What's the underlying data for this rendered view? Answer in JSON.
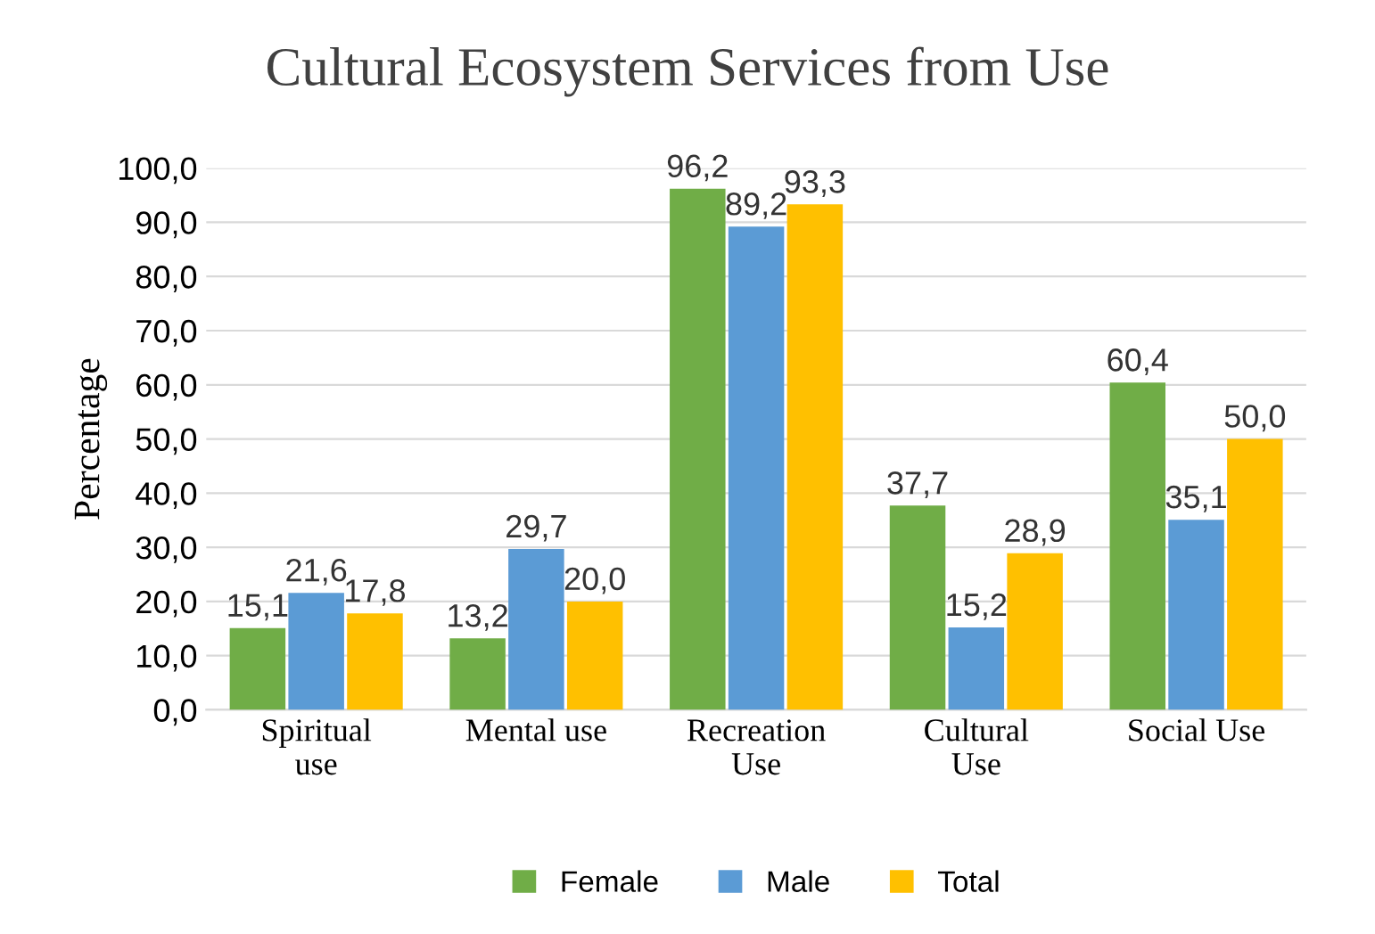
{
  "chart_data": {
    "type": "bar",
    "title": "Cultural Ecosystem Services from Use",
    "ylabel": "Percentage",
    "categories": [
      "Spiritual\nuse",
      "Mental use",
      "Recreation\nUse",
      "Cultural\nUse",
      "Social Use"
    ],
    "series": [
      {
        "name": "Female",
        "color": "#70ad47",
        "values": [
          15.1,
          13.2,
          96.2,
          37.7,
          60.4
        ],
        "value_labels": [
          "15,1",
          "13,2",
          "96,2",
          "37,7",
          "60,4"
        ]
      },
      {
        "name": "Male",
        "color": "#5b9bd5",
        "values": [
          21.6,
          29.7,
          89.2,
          15.2,
          35.1
        ],
        "value_labels": [
          "21,6",
          "29,7",
          "89,2",
          "15,2",
          "35,1"
        ]
      },
      {
        "name": "Total",
        "color": "#ffc000",
        "values": [
          17.8,
          20.0,
          93.3,
          28.9,
          50.0
        ],
        "value_labels": [
          "17,8",
          "20,0",
          "93,3",
          "28,9",
          "50,0"
        ]
      }
    ],
    "ylim": [
      0,
      100
    ],
    "yticks": [
      {
        "value": 0,
        "label": "0,0"
      },
      {
        "value": 10,
        "label": "10,0"
      },
      {
        "value": 20,
        "label": "20,0"
      },
      {
        "value": 30,
        "label": "30,0"
      },
      {
        "value": 40,
        "label": "40,0"
      },
      {
        "value": 50,
        "label": "50,0"
      },
      {
        "value": 60,
        "label": "60,0"
      },
      {
        "value": 70,
        "label": "70,0"
      },
      {
        "value": 80,
        "label": "80,0"
      },
      {
        "value": 90,
        "label": "90,0"
      },
      {
        "value": 100,
        "label": "100,0"
      }
    ],
    "grid": "y",
    "legend": "bottom"
  }
}
